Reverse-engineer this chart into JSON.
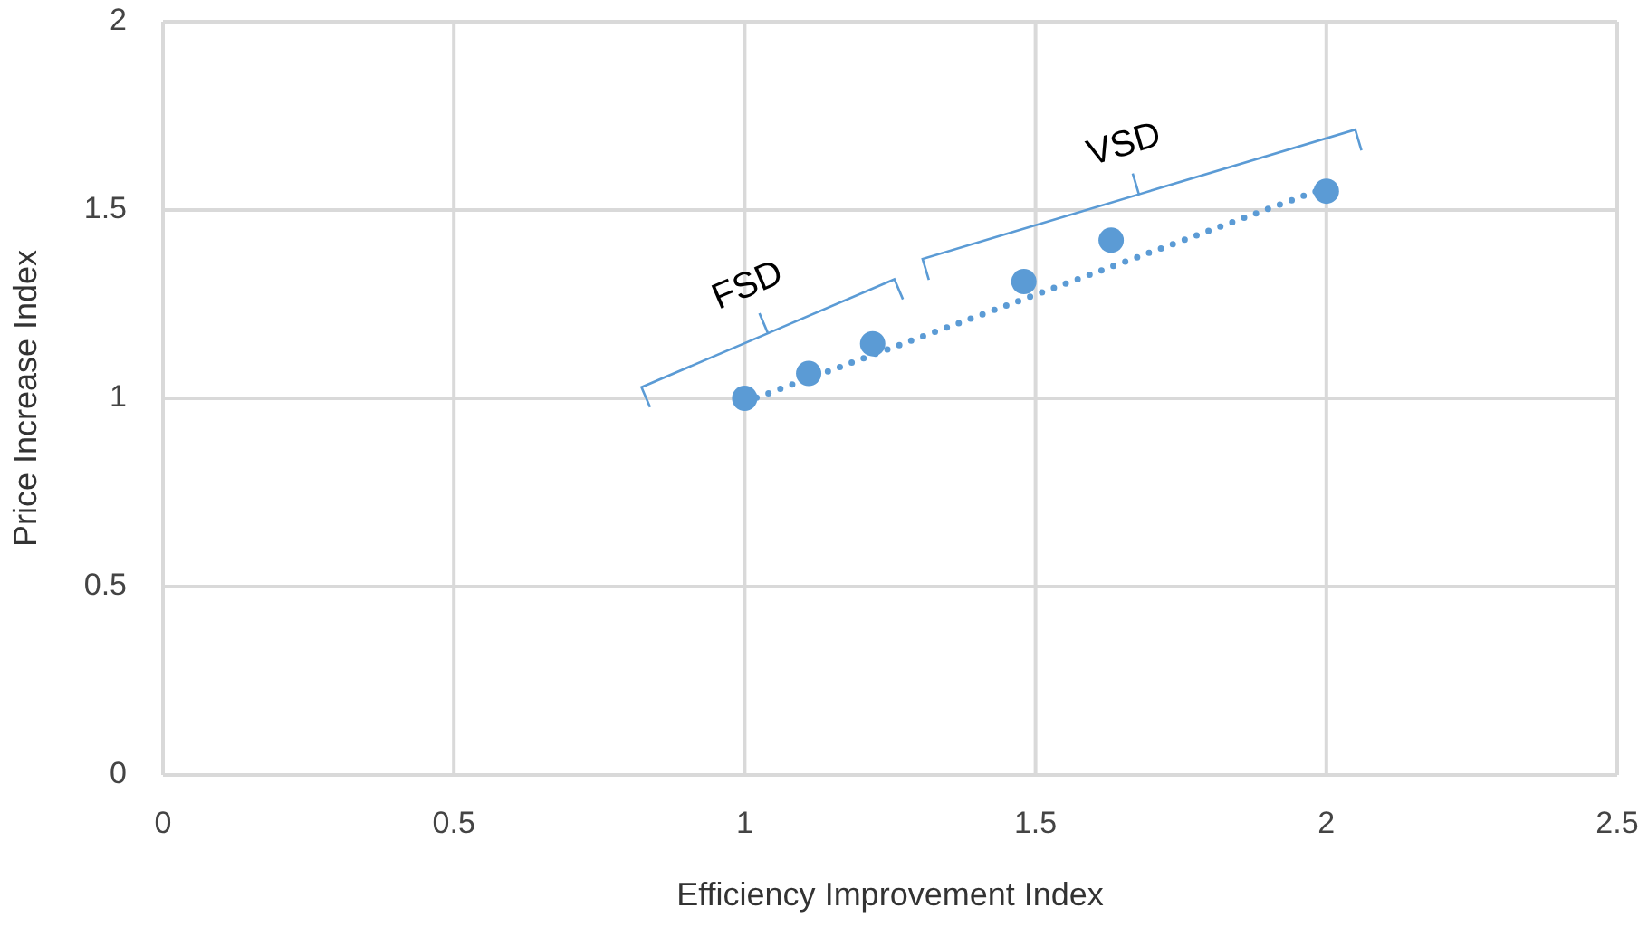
{
  "chart_data": {
    "type": "scatter",
    "xlabel": "Efficiency Improvement Index",
    "ylabel": "Price Increase Index",
    "x": [
      1,
      1.11,
      1.22,
      1.48,
      1.63,
      2
    ],
    "series": [
      {
        "color": "#5b9bd5",
        "values": [
          1,
          1.066,
          1.145,
          1.31,
          1.42,
          1.55
        ],
        "marker": "circle"
      },
      {
        "type": "line",
        "color": "#5b9bd5",
        "x": [
          1,
          2
        ],
        "values": [
          0.99,
          1.56
        ],
        "line_style": "dotted"
      }
    ],
    "annotations": [
      "FSD",
      "VSD"
    ],
    "xlim": [
      0,
      2.5
    ],
    "ylim": [
      0,
      2
    ],
    "xticks": [
      0,
      0.5,
      1,
      1.5,
      2,
      2.5
    ],
    "yticks": [
      0,
      0.5,
      1,
      1.5,
      2
    ],
    "grid": true
  }
}
